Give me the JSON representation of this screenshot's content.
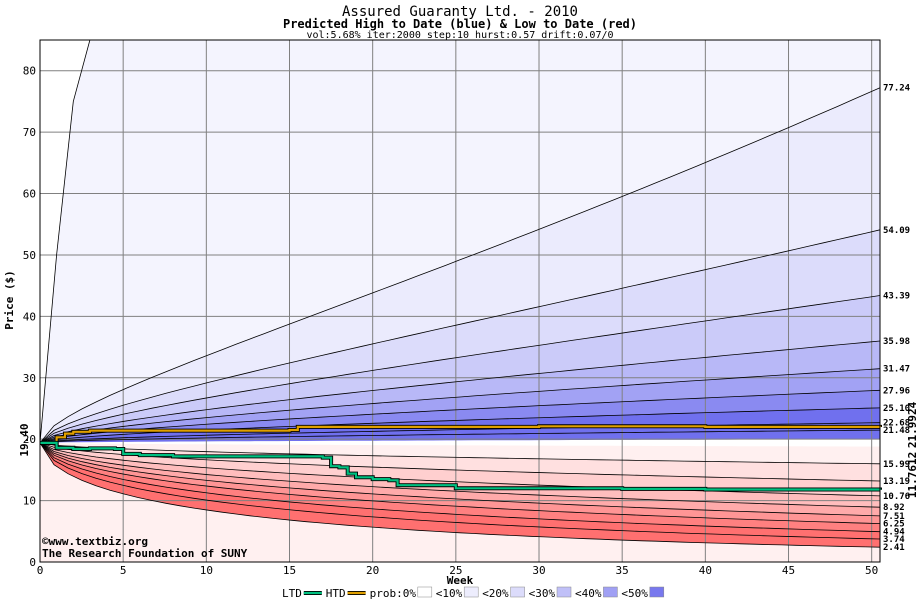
{
  "chart_data": {
    "type": "area",
    "title": "Assured Guaranty Ltd. - 2010",
    "subtitle": "Predicted High to Date (blue) &  Low to Date (red)",
    "params": "vol:5.68% iter:2000 step:10 hurst:0.57 drift:0.07/0",
    "xlabel": "Week",
    "ylabel": "Price ($)",
    "xlim": [
      0,
      50.5
    ],
    "ylim": [
      0,
      85
    ],
    "x_ticks": [
      0,
      5,
      10,
      15,
      20,
      25,
      30,
      35,
      40,
      45,
      50
    ],
    "y_ticks": [
      0,
      10,
      20,
      30,
      40,
      50,
      60,
      70,
      80
    ],
    "start_price": 19.4,
    "start_label": "19.40",
    "grid": true,
    "final_levels": [
      {
        "label": "77.24",
        "value": 77.24
      },
      {
        "label": "54.09",
        "value": 54.09
      },
      {
        "label": "43.39",
        "value": 43.39
      },
      {
        "label": "35.98",
        "value": 35.98
      },
      {
        "label": "31.47",
        "value": 31.47
      },
      {
        "label": "27.96",
        "value": 27.96
      },
      {
        "label": "25.10",
        "value": 25.1
      },
      {
        "label": "22.68",
        "value": 22.68
      },
      {
        "label": "21.48",
        "value": 21.48
      },
      {
        "label": "15.99",
        "value": 15.99
      },
      {
        "label": "13.19",
        "value": 13.19
      },
      {
        "label": "10.76",
        "value": 10.76
      },
      {
        "label": "8.92",
        "value": 8.92
      },
      {
        "label": "7.51",
        "value": 7.51
      },
      {
        "label": "6.25",
        "value": 6.25
      },
      {
        "label": "4.94",
        "value": 4.94
      },
      {
        "label": "3.74",
        "value": 3.74
      },
      {
        "label": "2.41",
        "value": 2.41
      }
    ],
    "outer_high_path": {
      "x": [
        0,
        1,
        2,
        3
      ],
      "y": [
        19.4,
        50,
        75,
        85
      ]
    },
    "htd_series": {
      "name": "HTD",
      "value_label": "21.9924",
      "x": [
        0,
        1,
        1.5,
        2,
        3,
        15,
        15.5,
        30,
        40,
        50.5
      ],
      "y": [
        19.4,
        20.3,
        20.9,
        21.2,
        21.4,
        21.5,
        22.0,
        22.1,
        22.0,
        21.99
      ]
    },
    "ltd_series": {
      "name": "LTD",
      "value_label": "11.7612",
      "x": [
        0,
        1,
        2,
        3,
        4.5,
        5,
        6,
        8,
        17,
        17.5,
        18,
        18.5,
        19,
        20,
        21,
        21.5,
        25,
        35,
        40,
        45,
        50.5
      ],
      "y": [
        19.4,
        18.6,
        18.4,
        18.5,
        18.4,
        17.6,
        17.4,
        17.2,
        17.0,
        15.6,
        15.4,
        14.4,
        13.8,
        13.5,
        13.3,
        12.5,
        12.0,
        11.9,
        11.8,
        11.8,
        11.76
      ]
    },
    "legend": [
      {
        "label": "LTD",
        "color": "#00c080"
      },
      {
        "label": "HTD",
        "color": "#e0a000"
      },
      {
        "label": "prob:0%",
        "color": "#ffffff"
      },
      {
        "label": "<10%",
        "color": "#ededfd"
      },
      {
        "label": "<20%",
        "color": "#dcdcfb"
      },
      {
        "label": "<30%",
        "color": "#c0c0f8"
      },
      {
        "label": "<40%",
        "color": "#a0a0f4"
      },
      {
        "label": "<50%",
        "color": "#7878ee"
      }
    ],
    "band_colors_blue": [
      "#f4f4fe",
      "#ebebfd",
      "#dcdcfb",
      "#cbcbf9",
      "#b8b8f7",
      "#a2a2f4",
      "#8a8af1",
      "#7070ee"
    ],
    "band_colors_red": [
      "#fff0f0",
      "#ffe0e0",
      "#ffcfcf",
      "#ffbdbd",
      "#ffaaaa",
      "#ff9595",
      "#ff8080",
      "#ff7070"
    ],
    "credits": [
      "©www.textbiz.org",
      "The Research Foundation of SUNY"
    ]
  }
}
